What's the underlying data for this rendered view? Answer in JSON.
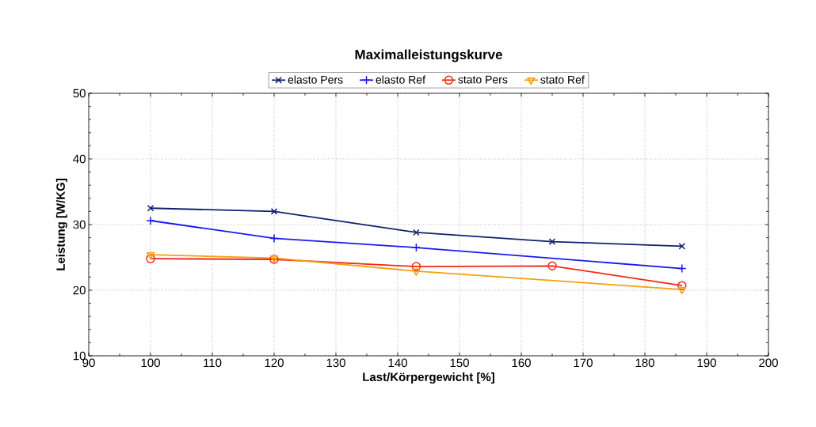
{
  "chart_data": {
    "type": "line",
    "title": "Maximalleistungskurve",
    "xlabel": "Last/Körpergewicht [%]",
    "ylabel": "Leistung [W/KG]",
    "xlim": [
      90,
      200
    ],
    "xticks": [
      90,
      100,
      110,
      120,
      130,
      140,
      150,
      160,
      170,
      180,
      190,
      200
    ],
    "ylim": [
      10,
      50
    ],
    "yticks": [
      10,
      20,
      30,
      40,
      50
    ],
    "grid": true,
    "legend": "top",
    "series": [
      {
        "name": "elasto Pers",
        "color": "#10206e",
        "marker": "cross",
        "x": [
          100,
          120,
          143,
          165,
          186
        ],
        "values": [
          32.5,
          32.0,
          28.8,
          27.4,
          26.7
        ]
      },
      {
        "name": "elasto Ref",
        "color": "#1a1af0",
        "marker": "plus",
        "x": [
          100,
          120,
          143,
          186
        ],
        "values": [
          30.6,
          27.9,
          26.5,
          23.3
        ]
      },
      {
        "name": "stato Pers",
        "color": "#f02818",
        "marker": "circle",
        "x": [
          100,
          120,
          143,
          165,
          186
        ],
        "values": [
          24.8,
          24.7,
          23.6,
          23.7,
          20.7
        ]
      },
      {
        "name": "stato Ref",
        "color": "#f5a010",
        "marker": "triangle",
        "x": [
          100,
          120,
          143,
          186
        ],
        "values": [
          25.4,
          24.9,
          22.9,
          20.1
        ]
      }
    ]
  }
}
